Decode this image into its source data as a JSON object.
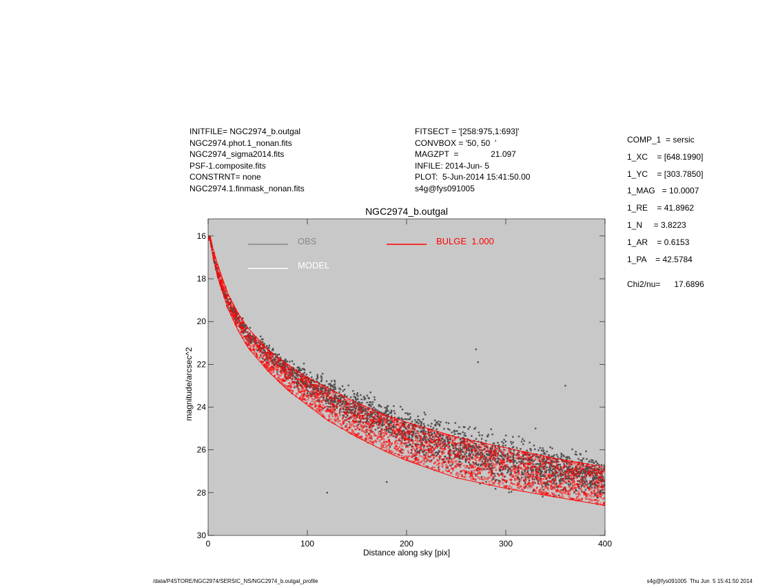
{
  "header_left": [
    "INITFILE= NGC2974_b.outgal",
    "NGC2974.phot.1_nonan.fits",
    "NGC2974_sigma2014.fits",
    "PSF-1.composite.fits",
    "CONSTRNT= none",
    "NGC2974.1.finmask_nonan.fits"
  ],
  "header_mid": [
    "FITSECT = '[258:975,1:693]'",
    "CONVBOX = '50, 50  '",
    "MAGZPT  =              21.097",
    "INFILE: 2014-Jun- 5",
    "PLOT:  5-Jun-2014 15:41:50.00",
    "s4g@fys091005"
  ],
  "header_right": [
    "COMP_1  = sersic",
    "1_XC    = [648.1990]",
    "1_YC    = [303.7850]",
    "1_MAG   = 10.0007",
    "1_RE    = 41.8962",
    "1_N     = 3.8223",
    "1_AR    = 0.6153",
    "1_PA    = 42.5784"
  ],
  "chi2": "Chi2/nu=      17.6896",
  "footer_left": "/data/P4STORE/NGC2974/SERSIC_NS/NGC2974_b.outgal_profile",
  "footer_right": "s4g@fys091005  Thu Jun  5 15:41:50 2014",
  "chart_data": {
    "type": "scatter",
    "title": "NGC2974_b.outgal",
    "xlabel": "Distance along sky [pix]",
    "ylabel": "magnitude/arcsec^2",
    "xlim": [
      0,
      400
    ],
    "ylim": [
      30,
      15.2
    ],
    "x_ticks": [
      0,
      100,
      200,
      300,
      400
    ],
    "y_ticks": [
      16,
      18,
      20,
      22,
      24,
      26,
      28,
      30
    ],
    "background": "#c8c8c8",
    "legend": [
      {
        "label": "OBS",
        "color": "#888888"
      },
      {
        "label": "MODEL",
        "color": "#ffffff"
      },
      {
        "label": "BULGE  1.000",
        "color": "#ff0000"
      }
    ],
    "series": [
      {
        "name": "OBS",
        "color": "#505050",
        "x": [
          2,
          5,
          10,
          20,
          30,
          40,
          60,
          80,
          100,
          120,
          150,
          180,
          200,
          250,
          300,
          350,
          400
        ],
        "y": [
          16.1,
          16.9,
          17.8,
          19.1,
          19.9,
          20.6,
          21.5,
          22.2,
          22.8,
          23.4,
          24.1,
          24.7,
          25.1,
          25.9,
          26.5,
          27.0,
          27.3
        ],
        "y_spread": [
          0.1,
          0.2,
          0.3,
          0.4,
          0.5,
          0.6,
          0.7,
          0.8,
          0.9,
          1.0,
          1.2,
          1.35,
          1.45,
          1.6,
          1.6,
          1.5,
          1.3
        ]
      },
      {
        "name": "BULGE  1.000",
        "color": "#ff0000",
        "x": [
          2,
          5,
          10,
          20,
          30,
          40,
          60,
          80,
          100,
          120,
          150,
          180,
          200,
          250,
          300,
          350,
          400
        ],
        "y_upper": [
          16.0,
          16.6,
          17.4,
          18.7,
          19.6,
          20.3,
          21.3,
          22.0,
          22.6,
          23.1,
          23.8,
          24.4,
          24.7,
          25.4,
          25.9,
          26.4,
          26.8
        ],
        "y_lower": [
          16.2,
          17.0,
          18.0,
          19.4,
          20.4,
          21.2,
          22.3,
          23.2,
          23.9,
          24.6,
          25.4,
          26.1,
          26.5,
          27.3,
          27.8,
          28.2,
          28.6
        ]
      }
    ]
  }
}
